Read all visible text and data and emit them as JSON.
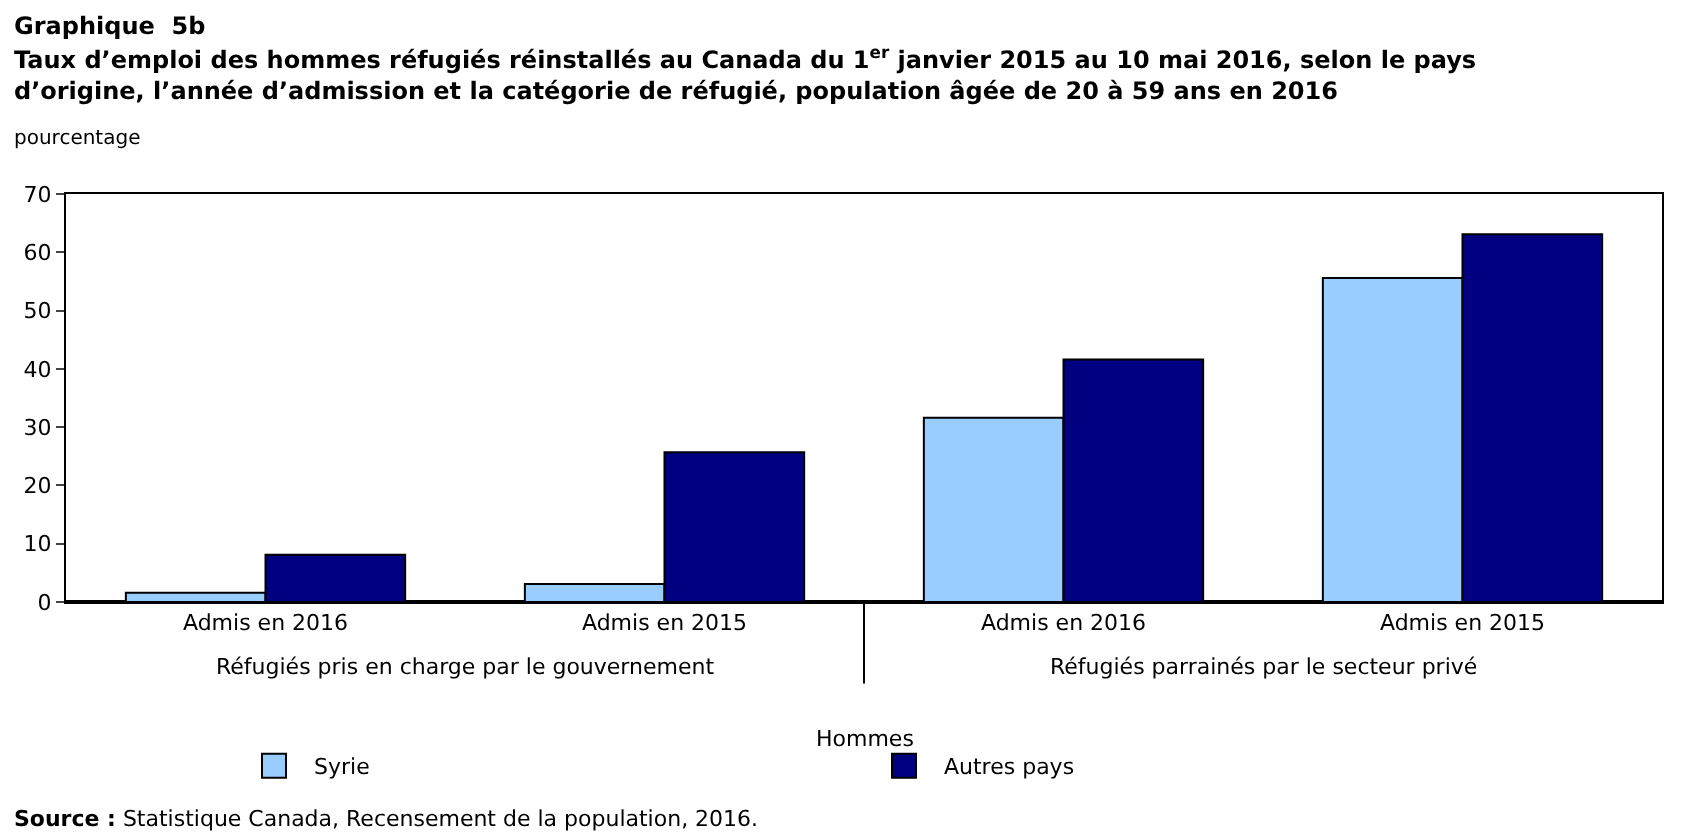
{
  "chart_data": {
    "type": "bar",
    "title": "Graphique  5b",
    "subtitle": "Taux d’emploi des hommes réfugiés réinstallés au Canada du 1$^{er}$ janvier 2015 au 10 mai 2016, selon le pays d’origine, l’année d’admission et la catégorie de réfugié, population âgée de 20 à 59 ans en 2016",
    "ylabel": "pourcentage",
    "xlabel": "Hommes",
    "categories": [
      "Admis en 2016",
      "Admis en 2015",
      "Admis en 2016",
      "Admis en 2015"
    ],
    "series": [
      {
        "name": "Syrie",
        "color": "#99ccff",
        "values": [
          1.6,
          3.1,
          31.6,
          55.6
        ]
      },
      {
        "name": "Autres pays",
        "color": "#000080",
        "values": [
          8.1,
          25.7,
          41.6,
          63.1
        ]
      }
    ],
    "annotations": [
      "Réfugiés pris en charge par le gouvernement",
      "Réfugiés parrainés par le secteur privé",
      "Source : Statistique Canada, Recensement de la population, 2016."
    ],
    "ylim": [
      0,
      70
    ],
    "yticks": [
      0,
      10,
      20,
      30,
      40,
      50,
      60,
      70
    ],
    "grid": false,
    "legend": "bottom"
  }
}
